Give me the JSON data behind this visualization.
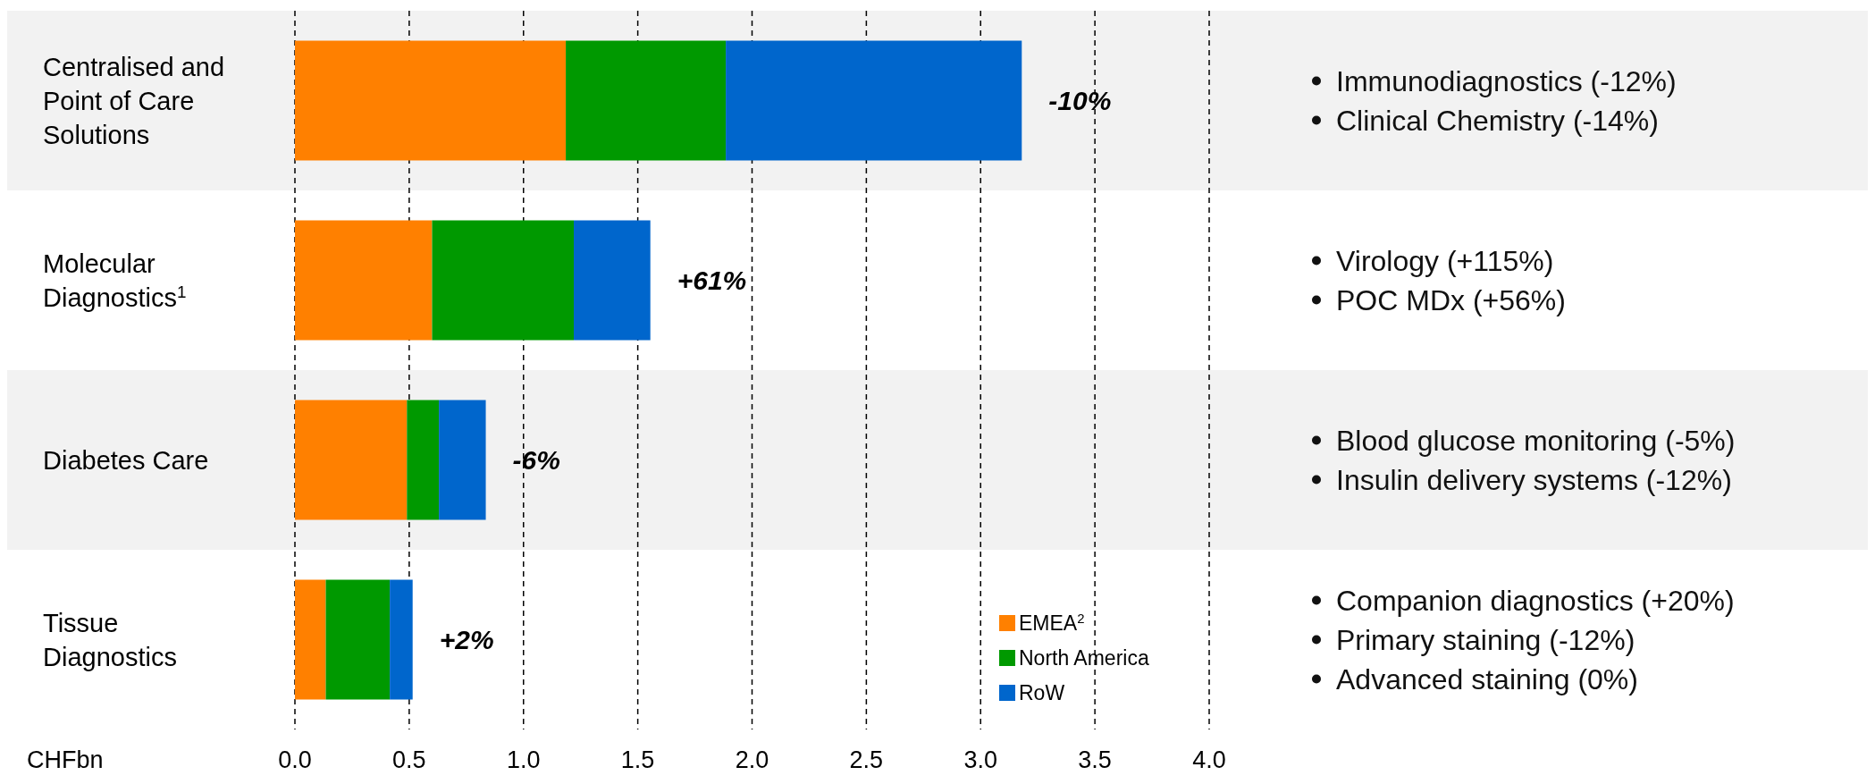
{
  "chart_data": {
    "type": "bar",
    "orientation": "horizontal",
    "stacked": true,
    "categories": [
      "Centralised and Point of Care Solutions",
      "Molecular Diagnostics$^{1}$",
      "Diabetes Care",
      "Tissue Diagnostics"
    ],
    "series": [
      {
        "name": "EMEA$^{2}$",
        "color": "#ff8000",
        "values": [
          1.185,
          0.6,
          0.49,
          0.135
        ]
      },
      {
        "name": "North America",
        "color": "#009900",
        "values": [
          0.7,
          0.62,
          0.14,
          0.28
        ]
      },
      {
        "name": "RoW",
        "color": "#0066cc",
        "values": [
          1.295,
          0.335,
          0.205,
          0.1
        ]
      }
    ],
    "xlim": [
      0,
      4
    ],
    "xticks": [
      {
        "value": 0,
        "label": "0.0"
      },
      {
        "value": 0.5,
        "label": "0.5"
      },
      {
        "value": 1,
        "label": "1.0"
      },
      {
        "value": 1.5,
        "label": "1.5"
      },
      {
        "value": 2,
        "label": "2.0"
      },
      {
        "value": 2.5,
        "label": "2.5"
      },
      {
        "value": 3,
        "label": "3.0"
      },
      {
        "value": 3.5,
        "label": "3.5"
      },
      {
        "value": 4,
        "label": "4.0"
      }
    ],
    "xlabel": "CHFbn",
    "grid": "x",
    "legend": "bottom right",
    "annotations": [
      {
        "text": "-10%",
        "x": 3.18,
        "y": "Centralised and Point of Care Solutions"
      },
      {
        "text": "+61%",
        "x": 1.555,
        "y": "Molecular Diagnostics$^{1}$"
      },
      {
        "text": "-6%",
        "x": 0.835,
        "y": "Diabetes Care"
      },
      {
        "text": "+2%",
        "x": 0.515,
        "y": "Tissue Diagnostics"
      },
      "Immunodiagnostics (-12%)",
      "Clinical Chemistry (-14%)",
      "Virology (+115%)",
      "POC MDx (+56%)",
      "Blood glucose monitoring (-5%)",
      "Insulin delivery systems (-12%)",
      "Companion diagnostics (+20%)",
      "Primary staining (-12%)",
      "Advanced staining (0%)"
    ]
  }
}
